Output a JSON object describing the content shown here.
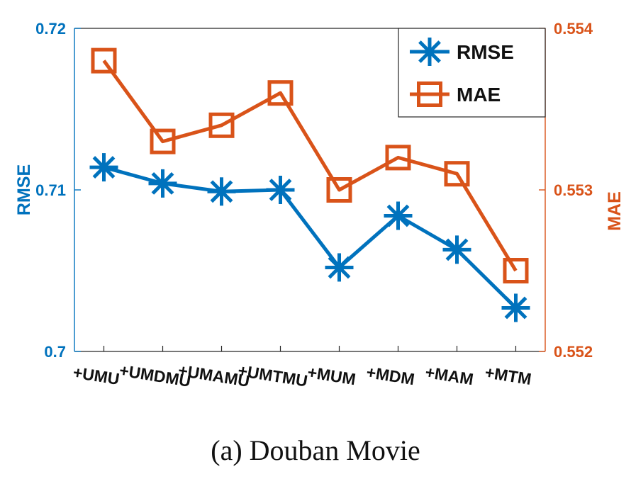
{
  "caption": "(a)  Douban Movie",
  "chart_data": {
    "type": "line",
    "categories": [
      "+UMU",
      "+UMDMU",
      "+UMAMU",
      "+UMTMU",
      "+MUM",
      "+MDM",
      "+MAM",
      "+MTM"
    ],
    "series": [
      {
        "name": "RMSE",
        "axis": "left",
        "color": "#0072BD",
        "marker": "asterisk",
        "values": [
          0.7114,
          0.7104,
          0.7099,
          0.71,
          0.7052,
          0.7084,
          0.7063,
          0.7027
        ]
      },
      {
        "name": "MAE",
        "axis": "right",
        "color": "#D95319",
        "marker": "square",
        "values": [
          0.5538,
          0.5533,
          0.5534,
          0.5536,
          0.553,
          0.5532,
          0.5531,
          0.5525
        ]
      }
    ],
    "y_left": {
      "label": "RMSE",
      "lim": [
        0.7,
        0.72
      ],
      "ticks": [
        "0.7",
        "0.71",
        "0.72"
      ],
      "color": "#0072BD"
    },
    "y_right": {
      "label": "MAE",
      "lim": [
        0.552,
        0.554
      ],
      "ticks": [
        "0.552",
        "0.553",
        "0.554"
      ],
      "color": "#D95319"
    },
    "legend": {
      "position": "top-right",
      "entries": [
        "RMSE",
        "MAE"
      ]
    },
    "grid": false
  }
}
